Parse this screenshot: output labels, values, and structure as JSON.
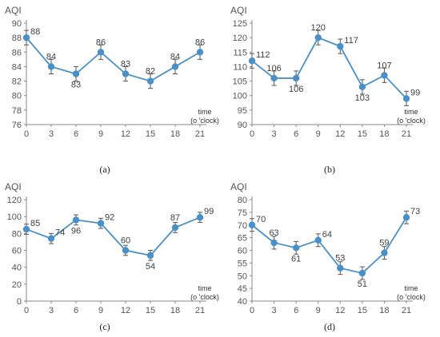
{
  "chart_data": [
    {
      "type": "line",
      "caption": "(a)",
      "ylabel": "AQI",
      "xlabel_line1": "time",
      "xlabel_line2": "(o 'clock)",
      "x": [
        0,
        3,
        6,
        9,
        12,
        15,
        18,
        21
      ],
      "values": [
        88,
        84,
        83,
        86,
        83,
        82,
        84,
        86
      ],
      "value_labels": [
        "88",
        "84",
        "83",
        "86",
        "83",
        "82",
        "84",
        "86"
      ],
      "error": [
        1,
        1,
        1,
        1,
        1,
        1,
        1,
        1
      ],
      "ylim": [
        76,
        90
      ],
      "ystep": 2,
      "grid": false,
      "color": "#4a90c8"
    },
    {
      "type": "line",
      "caption": "(b)",
      "ylabel": "AQI",
      "xlabel_line1": "time",
      "xlabel_line2": "(o 'clock)",
      "x": [
        0,
        3,
        6,
        9,
        12,
        15,
        18,
        21
      ],
      "values": [
        112,
        106,
        106,
        120,
        117,
        103,
        107,
        99
      ],
      "value_labels": [
        "112",
        "106",
        "106",
        "120",
        "117",
        "103",
        "107",
        "99"
      ],
      "error": [
        2.5,
        2.5,
        2.5,
        2.5,
        2.5,
        2.5,
        2.5,
        2.5
      ],
      "ylim": [
        90,
        125
      ],
      "ystep": 5,
      "grid": false,
      "color": "#4a90c8"
    },
    {
      "type": "line",
      "caption": "(c)",
      "ylabel": "AQI",
      "xlabel_line1": "time",
      "xlabel_line2": "(o 'clock)",
      "x": [
        0,
        3,
        6,
        9,
        12,
        15,
        18,
        21
      ],
      "values": [
        85,
        74,
        96,
        92,
        60,
        54,
        87,
        99
      ],
      "value_labels": [
        "85",
        "74",
        "96",
        "92",
        "60",
        "54",
        "87",
        "99"
      ],
      "error": [
        6,
        6,
        6,
        6,
        6,
        6,
        6,
        6
      ],
      "ylim": [
        0,
        120
      ],
      "ystep": 20,
      "grid": false,
      "color": "#4a90c8"
    },
    {
      "type": "line",
      "caption": "(d)",
      "ylabel": "AQI",
      "xlabel_line1": "time",
      "xlabel_line2": "(o 'clock)",
      "x": [
        0,
        3,
        6,
        9,
        12,
        15,
        18,
        21
      ],
      "values": [
        70,
        63,
        61,
        64,
        53,
        51,
        59,
        73
      ],
      "value_labels": [
        "70",
        "63",
        "61",
        "64",
        "53",
        "51",
        "59",
        "73"
      ],
      "error": [
        2.5,
        2.5,
        2.5,
        2.5,
        2.5,
        2.5,
        2.5,
        2.5
      ],
      "ylim": [
        40,
        80
      ],
      "ystep": 5,
      "grid": false,
      "color": "#4a90c8"
    }
  ]
}
